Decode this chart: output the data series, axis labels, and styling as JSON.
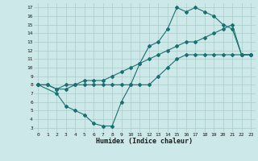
{
  "xlabel": "Humidex (Indice chaleur)",
  "ylabel": "",
  "bg_color": "#cde8e8",
  "grid_color": "#aacccc",
  "line_color": "#1a7070",
  "xlim": [
    -0.5,
    23.5
  ],
  "ylim": [
    2.5,
    17.5
  ],
  "xticks": [
    0,
    1,
    2,
    3,
    4,
    5,
    6,
    7,
    8,
    9,
    10,
    11,
    12,
    13,
    14,
    15,
    16,
    17,
    18,
    19,
    20,
    21,
    22,
    23
  ],
  "yticks": [
    3,
    4,
    5,
    6,
    7,
    8,
    9,
    10,
    11,
    12,
    13,
    14,
    15,
    16,
    17
  ],
  "line1_x": [
    0,
    1,
    2,
    3,
    4,
    5,
    6,
    7,
    8,
    9,
    10,
    11,
    12,
    13,
    14,
    15,
    16,
    17,
    18,
    19,
    20,
    21,
    22,
    23
  ],
  "line1_y": [
    8.0,
    8.0,
    7.5,
    8.0,
    8.0,
    8.0,
    8.0,
    8.0,
    8.0,
    8.0,
    8.0,
    8.0,
    8.0,
    9.0,
    10.0,
    11.0,
    11.5,
    11.5,
    11.5,
    11.5,
    11.5,
    11.5,
    11.5,
    11.5
  ],
  "line2_x": [
    0,
    2,
    3,
    4,
    5,
    6,
    7,
    8,
    9,
    10,
    11,
    12,
    13,
    14,
    15,
    16,
    17,
    18,
    19,
    20,
    21,
    22,
    23
  ],
  "line2_y": [
    8.0,
    7.0,
    5.5,
    5.0,
    4.5,
    3.5,
    3.2,
    3.2,
    6.0,
    8.0,
    10.5,
    12.5,
    13.0,
    14.5,
    17.0,
    16.5,
    17.0,
    16.5,
    16.0,
    15.0,
    14.5,
    11.5,
    11.5
  ],
  "line3_x": [
    0,
    1,
    2,
    3,
    4,
    5,
    6,
    7,
    8,
    9,
    10,
    11,
    12,
    13,
    14,
    15,
    16,
    17,
    18,
    19,
    20,
    21,
    22,
    23
  ],
  "line3_y": [
    8.0,
    8.0,
    7.5,
    7.5,
    8.0,
    8.5,
    8.5,
    8.5,
    9.0,
    9.5,
    10.0,
    10.5,
    11.0,
    11.5,
    12.0,
    12.5,
    13.0,
    13.0,
    13.5,
    14.0,
    14.5,
    15.0,
    11.5,
    11.5
  ]
}
